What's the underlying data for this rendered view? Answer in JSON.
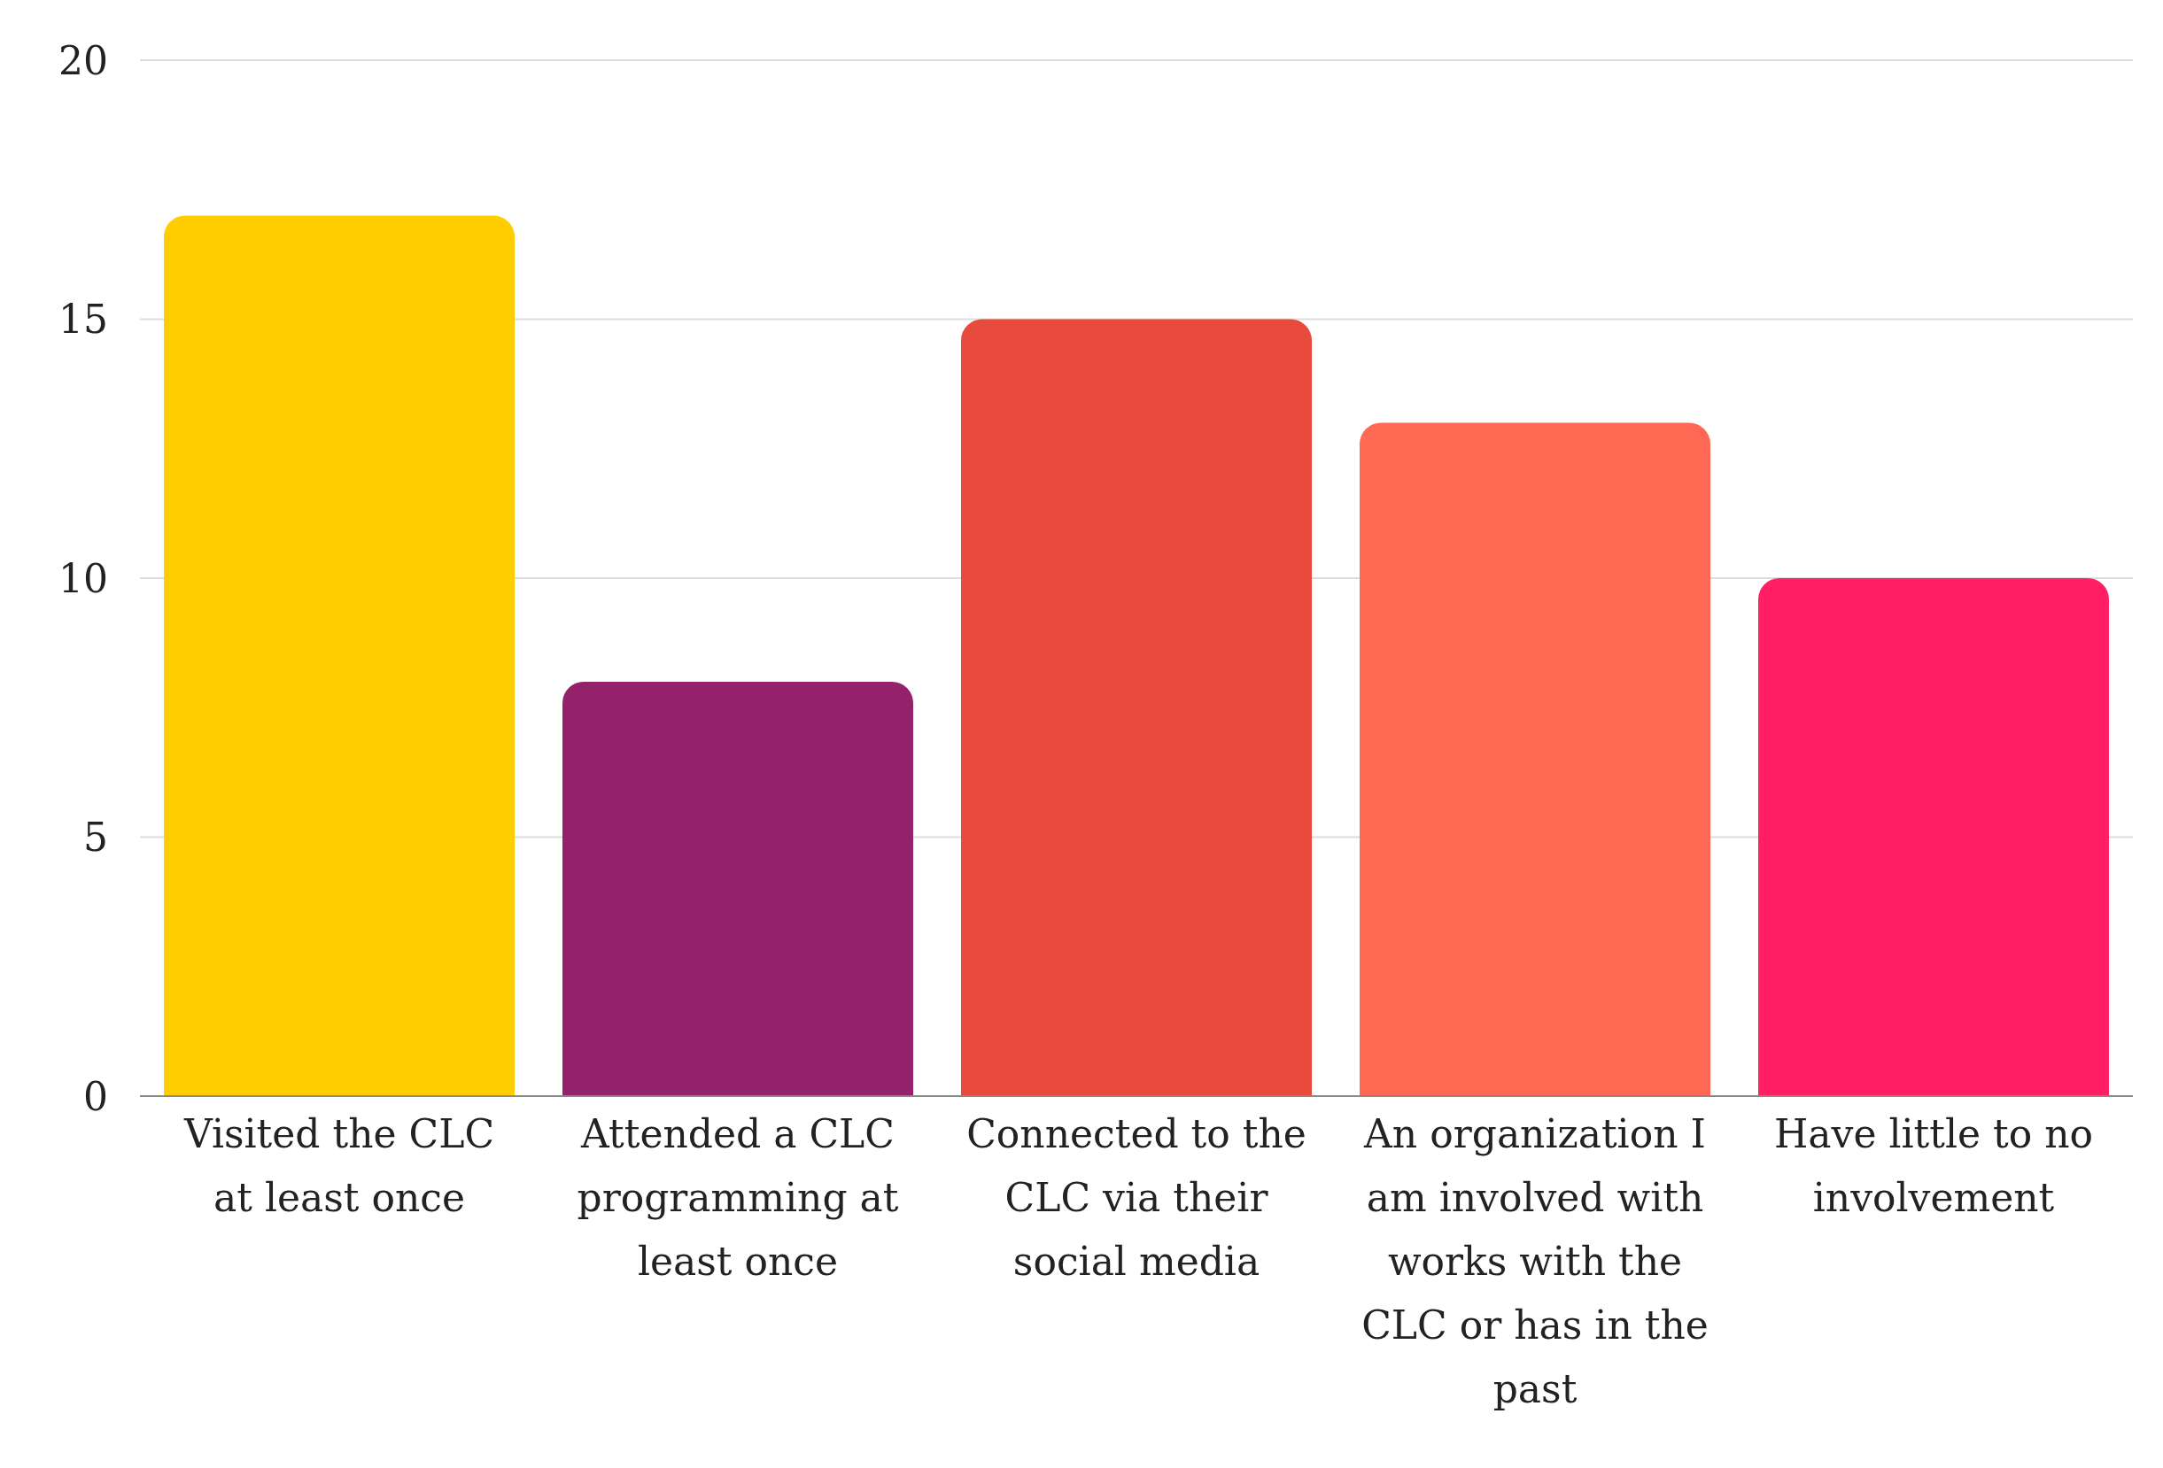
{
  "chart_data": {
    "type": "bar",
    "categories": [
      "Visited the CLC at least once",
      "Attended a CLC programming at least once",
      "Connected to the CLC via their social media",
      "An organization I am involved with works with the CLC or has in the past",
      "Have little to no involvement"
    ],
    "values": [
      17,
      8,
      15,
      13,
      10
    ],
    "colors": [
      "#ffcd00",
      "#93226a",
      "#e84b3c",
      "#ff6853",
      "#ff1f62"
    ],
    "ylim": [
      0,
      20
    ],
    "yticks": [
      0,
      5,
      10,
      15,
      20
    ],
    "grid": "y",
    "legend": false
  }
}
